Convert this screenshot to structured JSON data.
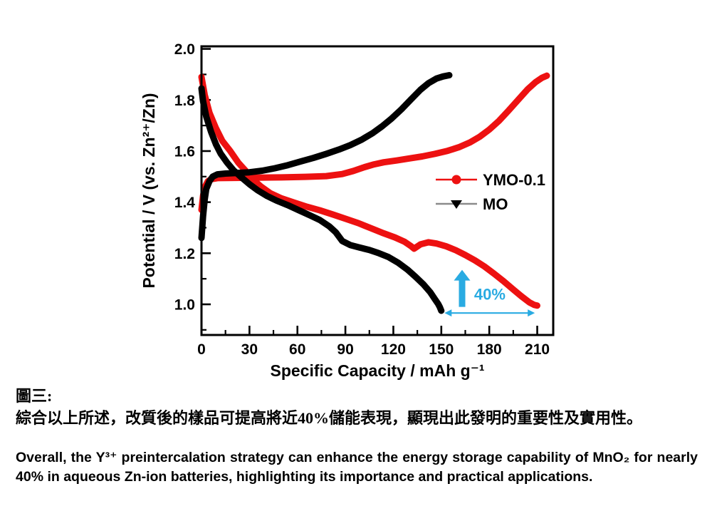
{
  "figure": {
    "caption_zh_title": "圖三:",
    "caption_zh_body": "綜合以上所述，改質後的樣品可提高將近40%儲能表現，顯現出此發明的重要性及實用性。",
    "caption_en": "Overall, the Y³⁺ preintercalation strategy can enhance the energy storage capability of MnO₂ for nearly 40% in aqueous Zn-ion batteries, highlighting its importance and practical applications."
  },
  "chart_data": {
    "type": "line",
    "title": "",
    "xlabel": "Specific Capacity / mAh g⁻¹",
    "ylabel": "Potential / V (vs. Zn²⁺/Zn)",
    "xlim": [
      0,
      220
    ],
    "ylim": [
      0.88,
      2.01
    ],
    "xticks": [
      0,
      30,
      60,
      90,
      120,
      150,
      180,
      210
    ],
    "xminor_step": 15,
    "yticks": [
      1.0,
      1.2,
      1.4,
      1.6,
      1.8,
      2.0
    ],
    "yminor_step": 0.1,
    "grid": false,
    "frame_color": "#000000",
    "legend": {
      "position": "right-middle",
      "entries": [
        {
          "label": "YMO-0.1",
          "color": "#ed1111",
          "line_color": "#ed1111",
          "marker": "circle"
        },
        {
          "label": "MO",
          "color": "#000000",
          "line_color": "#8a8a8a",
          "marker": "triangle-down"
        }
      ]
    },
    "series": [
      {
        "name": "YMO-0.1 discharge",
        "color": "#ed1111",
        "width": 9,
        "points": [
          [
            0,
            1.89
          ],
          [
            2,
            1.82
          ],
          [
            5,
            1.75
          ],
          [
            9,
            1.69
          ],
          [
            13,
            1.64
          ],
          [
            18,
            1.6
          ],
          [
            23,
            1.555
          ],
          [
            28,
            1.52
          ],
          [
            32,
            1.49
          ],
          [
            37,
            1.462
          ],
          [
            43,
            1.435
          ],
          [
            50,
            1.415
          ],
          [
            58,
            1.398
          ],
          [
            66,
            1.382
          ],
          [
            74,
            1.368
          ],
          [
            82,
            1.352
          ],
          [
            90,
            1.335
          ],
          [
            98,
            1.318
          ],
          [
            106,
            1.298
          ],
          [
            114,
            1.278
          ],
          [
            121,
            1.262
          ],
          [
            127,
            1.245
          ],
          [
            131,
            1.228
          ],
          [
            133,
            1.218
          ],
          [
            137,
            1.235
          ],
          [
            142,
            1.243
          ],
          [
            147,
            1.238
          ],
          [
            153,
            1.227
          ],
          [
            159,
            1.212
          ],
          [
            165,
            1.193
          ],
          [
            171,
            1.172
          ],
          [
            177,
            1.148
          ],
          [
            183,
            1.12
          ],
          [
            189,
            1.09
          ],
          [
            195,
            1.058
          ],
          [
            200,
            1.032
          ],
          [
            205,
            1.008
          ],
          [
            208,
            0.998
          ],
          [
            210,
            0.995
          ]
        ]
      },
      {
        "name": "YMO-0.1 charge",
        "color": "#ed1111",
        "width": 9,
        "points": [
          [
            0,
            1.37
          ],
          [
            1,
            1.425
          ],
          [
            2,
            1.458
          ],
          [
            4,
            1.482
          ],
          [
            6,
            1.49
          ],
          [
            10,
            1.494
          ],
          [
            20,
            1.495
          ],
          [
            35,
            1.496
          ],
          [
            50,
            1.497
          ],
          [
            65,
            1.499
          ],
          [
            78,
            1.502
          ],
          [
            88,
            1.51
          ],
          [
            95,
            1.522
          ],
          [
            102,
            1.537
          ],
          [
            108,
            1.548
          ],
          [
            114,
            1.556
          ],
          [
            122,
            1.563
          ],
          [
            130,
            1.571
          ],
          [
            138,
            1.579
          ],
          [
            146,
            1.589
          ],
          [
            154,
            1.601
          ],
          [
            161,
            1.615
          ],
          [
            168,
            1.634
          ],
          [
            174,
            1.656
          ],
          [
            180,
            1.684
          ],
          [
            186,
            1.718
          ],
          [
            192,
            1.758
          ],
          [
            198,
            1.8
          ],
          [
            204,
            1.842
          ],
          [
            209,
            1.87
          ],
          [
            213,
            1.887
          ],
          [
            216,
            1.895
          ]
        ]
      },
      {
        "name": "MO charge",
        "color": "#000000",
        "width": 9,
        "points": [
          [
            0,
            1.26
          ],
          [
            1,
            1.345
          ],
          [
            2,
            1.41
          ],
          [
            3,
            1.452
          ],
          [
            5,
            1.482
          ],
          [
            7,
            1.5
          ],
          [
            10,
            1.509
          ],
          [
            15,
            1.512
          ],
          [
            22,
            1.514
          ],
          [
            30,
            1.517
          ],
          [
            38,
            1.523
          ],
          [
            46,
            1.533
          ],
          [
            54,
            1.545
          ],
          [
            62,
            1.559
          ],
          [
            70,
            1.573
          ],
          [
            78,
            1.589
          ],
          [
            86,
            1.606
          ],
          [
            93,
            1.623
          ],
          [
            100,
            1.644
          ],
          [
            107,
            1.67
          ],
          [
            113,
            1.697
          ],
          [
            119,
            1.728
          ],
          [
            125,
            1.763
          ],
          [
            131,
            1.802
          ],
          [
            137,
            1.84
          ],
          [
            142,
            1.866
          ],
          [
            147,
            1.884
          ],
          [
            151,
            1.892
          ],
          [
            155,
            1.897
          ]
        ]
      },
      {
        "name": "MO discharge",
        "color": "#000000",
        "width": 9,
        "points": [
          [
            0,
            1.845
          ],
          [
            1,
            1.795
          ],
          [
            3,
            1.735
          ],
          [
            6,
            1.675
          ],
          [
            9,
            1.627
          ],
          [
            12,
            1.59
          ],
          [
            16,
            1.555
          ],
          [
            20,
            1.525
          ],
          [
            25,
            1.497
          ],
          [
            30,
            1.47
          ],
          [
            35,
            1.447
          ],
          [
            41,
            1.424
          ],
          [
            47,
            1.406
          ],
          [
            54,
            1.388
          ],
          [
            61,
            1.368
          ],
          [
            68,
            1.348
          ],
          [
            74,
            1.33
          ],
          [
            80,
            1.305
          ],
          [
            84,
            1.282
          ],
          [
            88,
            1.248
          ],
          [
            93,
            1.232
          ],
          [
            99,
            1.222
          ],
          [
            105,
            1.213
          ],
          [
            111,
            1.2
          ],
          [
            117,
            1.185
          ],
          [
            123,
            1.163
          ],
          [
            129,
            1.135
          ],
          [
            134,
            1.107
          ],
          [
            139,
            1.077
          ],
          [
            143,
            1.048
          ],
          [
            146,
            1.02
          ],
          [
            148,
            1.002
          ],
          [
            149,
            0.99
          ],
          [
            150,
            0.975
          ]
        ]
      }
    ],
    "annotations": {
      "accent_color": "#29abe2",
      "percent_label": "40%",
      "percent_label_pos": {
        "x": 170.5,
        "v": 1.018
      },
      "up_arrow": {
        "x": 163,
        "v_from": 0.99,
        "v_to": 1.135
      },
      "span_arrow": {
        "v": 0.966,
        "x_from": 152,
        "x_to": 208.5
      }
    },
    "tick_font_px": 21,
    "axis_label_font_px": 23,
    "legend_font_px": 22
  }
}
